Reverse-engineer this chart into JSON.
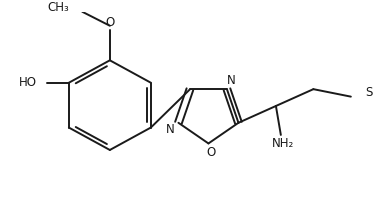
{
  "background_color": "#ffffff",
  "line_color": "#1a1a1a",
  "line_width": 1.4,
  "figsize": [
    3.74,
    1.99
  ],
  "dpi": 100,
  "text_fontsize": 8.5,
  "label_HO": "HO",
  "label_methoxy": "O",
  "label_N1": "N",
  "label_N2": "N",
  "label_O_ring": "O",
  "label_NH2": "NH₂",
  "label_S": "S"
}
